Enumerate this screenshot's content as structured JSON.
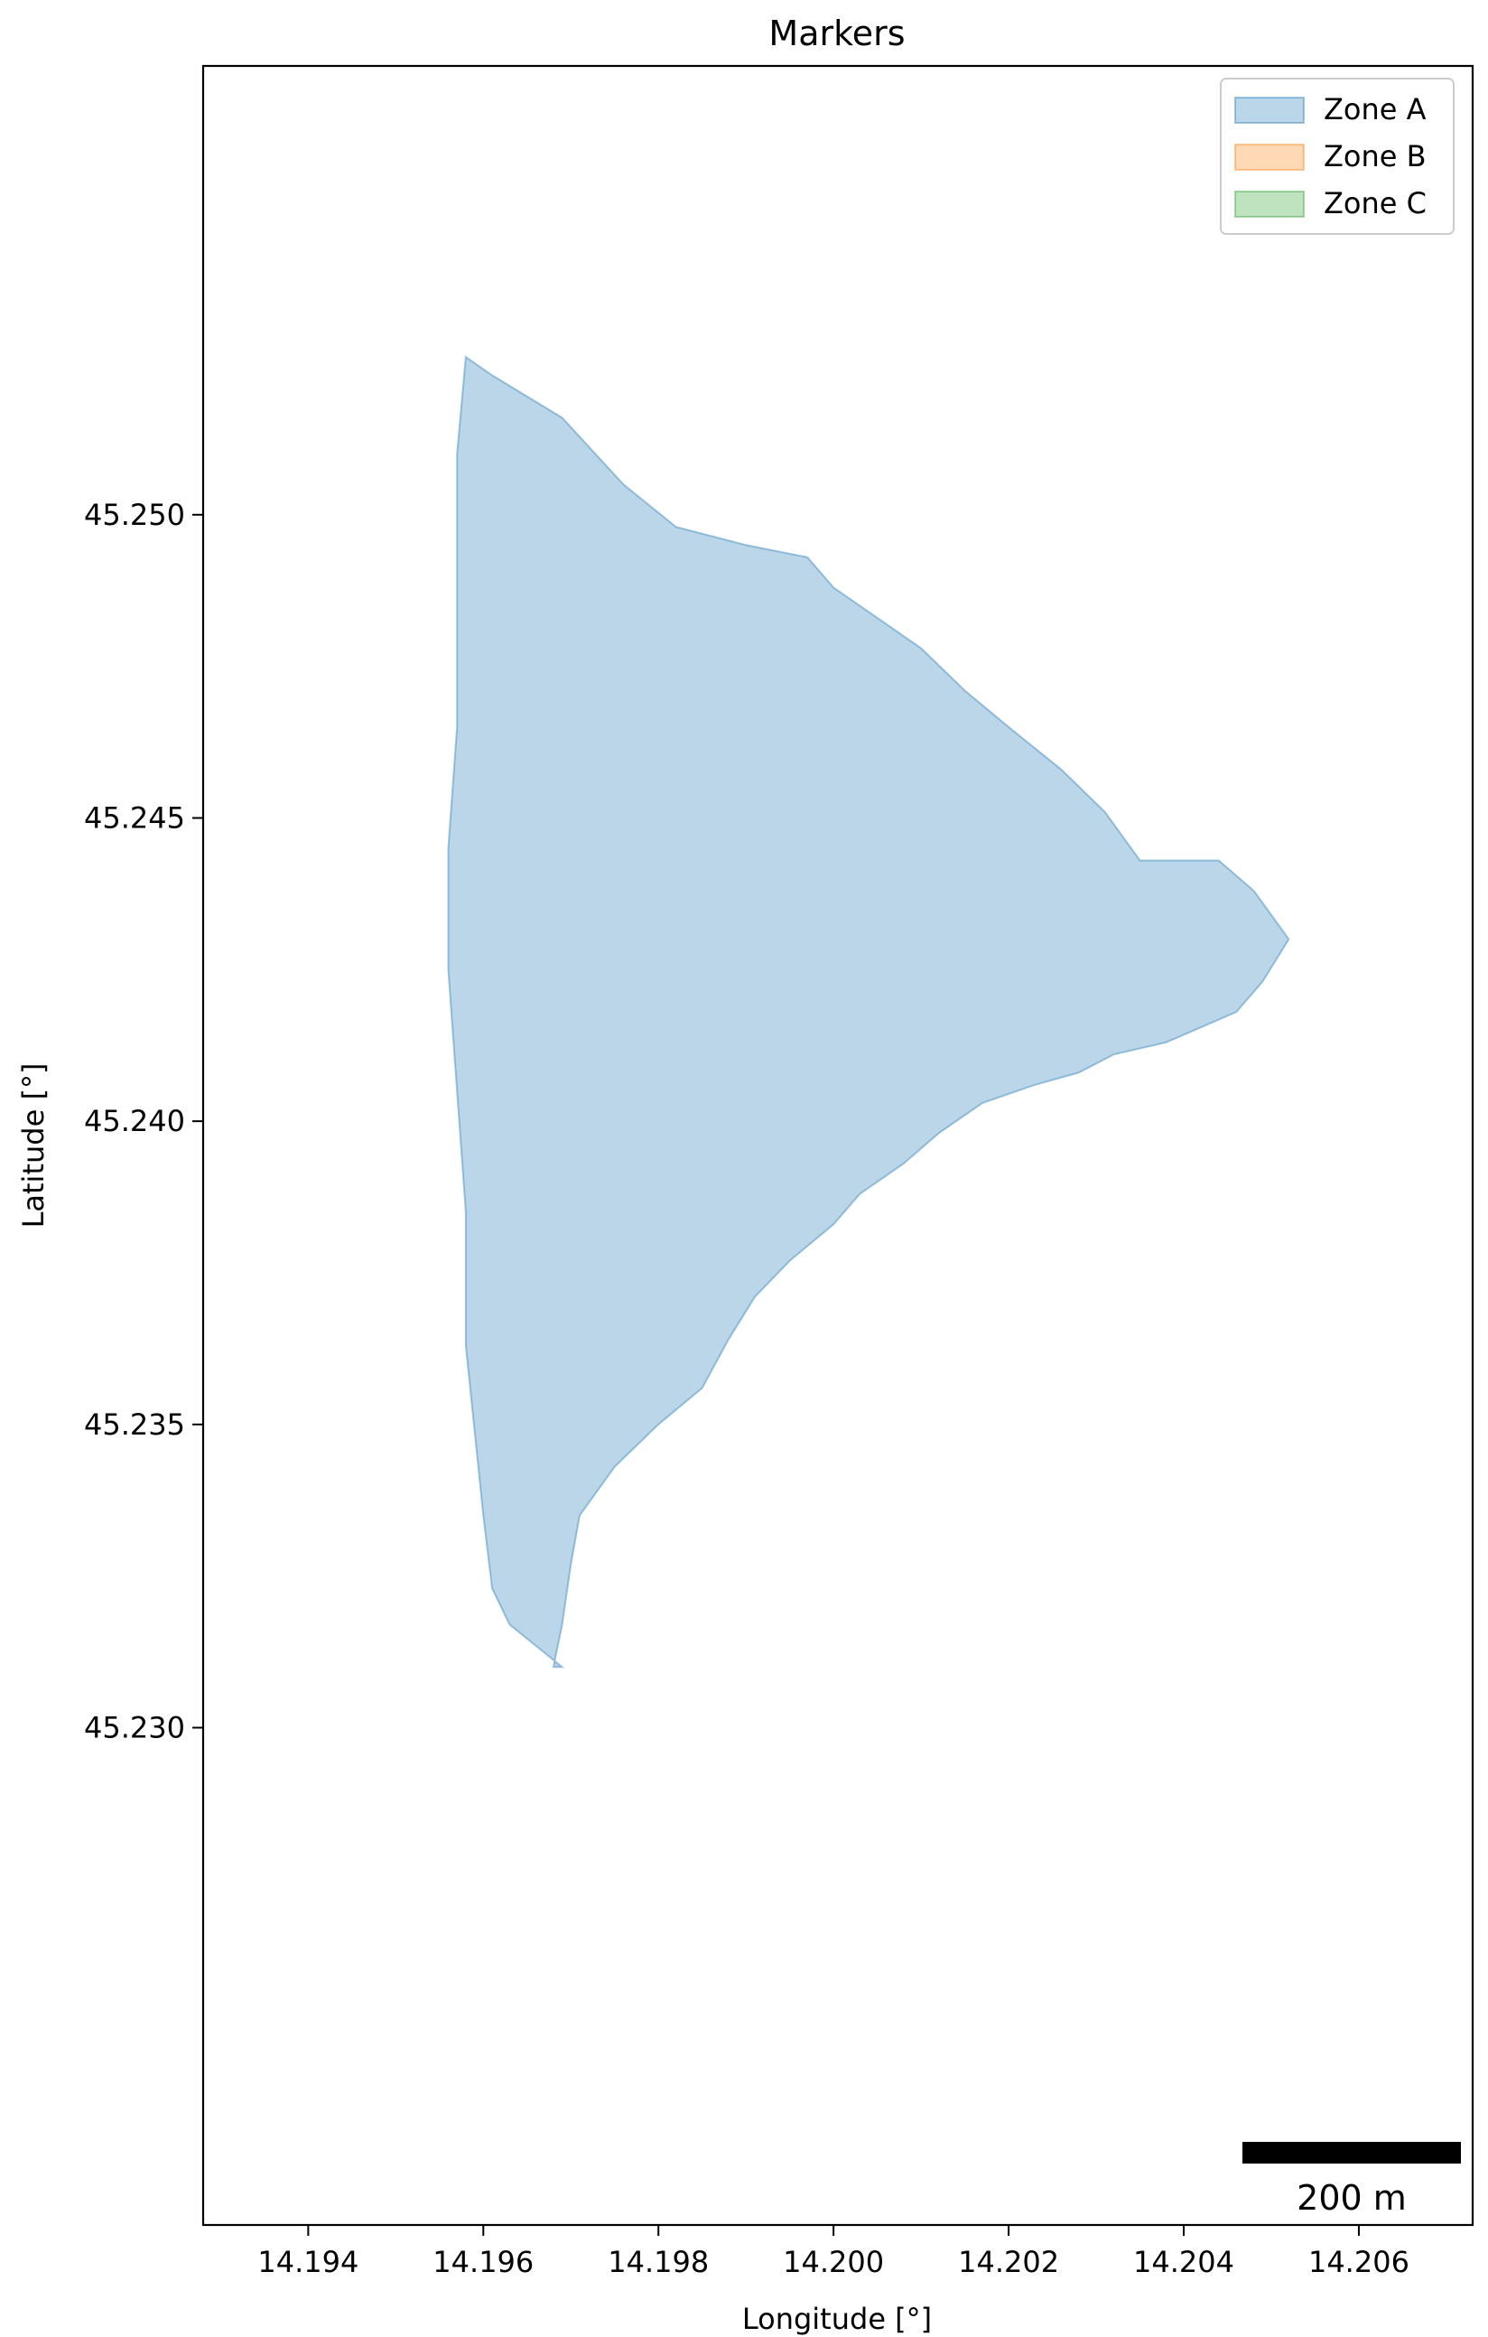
{
  "chart_data": {
    "type": "scatter",
    "title": "Markers",
    "xlabel": "Longitude [°]",
    "ylabel": "Latitude [°]",
    "xlim": [
      14.1928,
      14.2073
    ],
    "ylim": [
      45.2218,
      45.2574
    ],
    "xticks": [
      14.194,
      14.196,
      14.198,
      14.2,
      14.202,
      14.204,
      14.206
    ],
    "xtick_labels": [
      "14.194",
      "14.196",
      "14.198",
      "14.200",
      "14.202",
      "14.204",
      "14.206"
    ],
    "yticks": [
      45.23,
      45.235,
      45.24,
      45.245,
      45.25
    ],
    "ytick_labels": [
      "45.230",
      "45.235",
      "45.240",
      "45.245",
      "45.250"
    ],
    "grid": false,
    "legend_position": "top-right",
    "scale_bar": {
      "label": "200 m"
    },
    "series": [
      {
        "name": "Zone A",
        "fill": "#1f77b4",
        "point_color": "#1f77b4",
        "polygon": [
          [
            14.1958,
            45.2526
          ],
          [
            14.1961,
            45.2523
          ],
          [
            14.1969,
            45.2516
          ],
          [
            14.1976,
            45.2505
          ],
          [
            14.1982,
            45.2498
          ],
          [
            14.199,
            45.2495
          ],
          [
            14.1997,
            45.2493
          ],
          [
            14.2,
            45.2488
          ],
          [
            14.2004,
            45.2484
          ],
          [
            14.201,
            45.2478
          ],
          [
            14.2015,
            45.2471
          ],
          [
            14.202,
            45.2465
          ],
          [
            14.2026,
            45.2458
          ],
          [
            14.2031,
            45.2451
          ],
          [
            14.2035,
            45.2443
          ],
          [
            14.204,
            45.2443
          ],
          [
            14.2044,
            45.2443
          ],
          [
            14.2048,
            45.2438
          ],
          [
            14.2052,
            45.243
          ],
          [
            14.2049,
            45.2423
          ],
          [
            14.2046,
            45.2418
          ],
          [
            14.2038,
            45.2413
          ],
          [
            14.2032,
            45.2411
          ],
          [
            14.2028,
            45.2408
          ],
          [
            14.2023,
            45.2406
          ],
          [
            14.2017,
            45.2403
          ],
          [
            14.2012,
            45.2398
          ],
          [
            14.2008,
            45.2393
          ],
          [
            14.2003,
            45.2388
          ],
          [
            14.2,
            45.2383
          ],
          [
            14.1995,
            45.2377
          ],
          [
            14.1991,
            45.2371
          ],
          [
            14.1988,
            45.2364
          ],
          [
            14.1985,
            45.2356
          ],
          [
            14.198,
            45.235
          ],
          [
            14.1975,
            45.2343
          ],
          [
            14.1971,
            45.2335
          ],
          [
            14.197,
            45.2327
          ],
          [
            14.1969,
            45.2317
          ],
          [
            14.1968,
            45.231
          ],
          [
            14.1969,
            45.231
          ],
          [
            14.1963,
            45.2317
          ],
          [
            14.1961,
            45.2323
          ],
          [
            14.196,
            45.2335
          ],
          [
            14.1959,
            45.2349
          ],
          [
            14.1958,
            45.2363
          ],
          [
            14.1958,
            45.2385
          ],
          [
            14.1957,
            45.2405
          ],
          [
            14.1956,
            45.2425
          ],
          [
            14.1956,
            45.2445
          ],
          [
            14.1957,
            45.2465
          ],
          [
            14.1957,
            45.249
          ],
          [
            14.1957,
            45.251
          ]
        ],
        "points": []
      },
      {
        "name": "Zone B",
        "fill": "#ff7f0e",
        "point_color": "#ff7f0e",
        "polygon": [],
        "points": []
      },
      {
        "name": "Zone C",
        "fill": "#2ca02c",
        "point_color": "#2ca02c",
        "polygon": [],
        "points": []
      }
    ]
  }
}
